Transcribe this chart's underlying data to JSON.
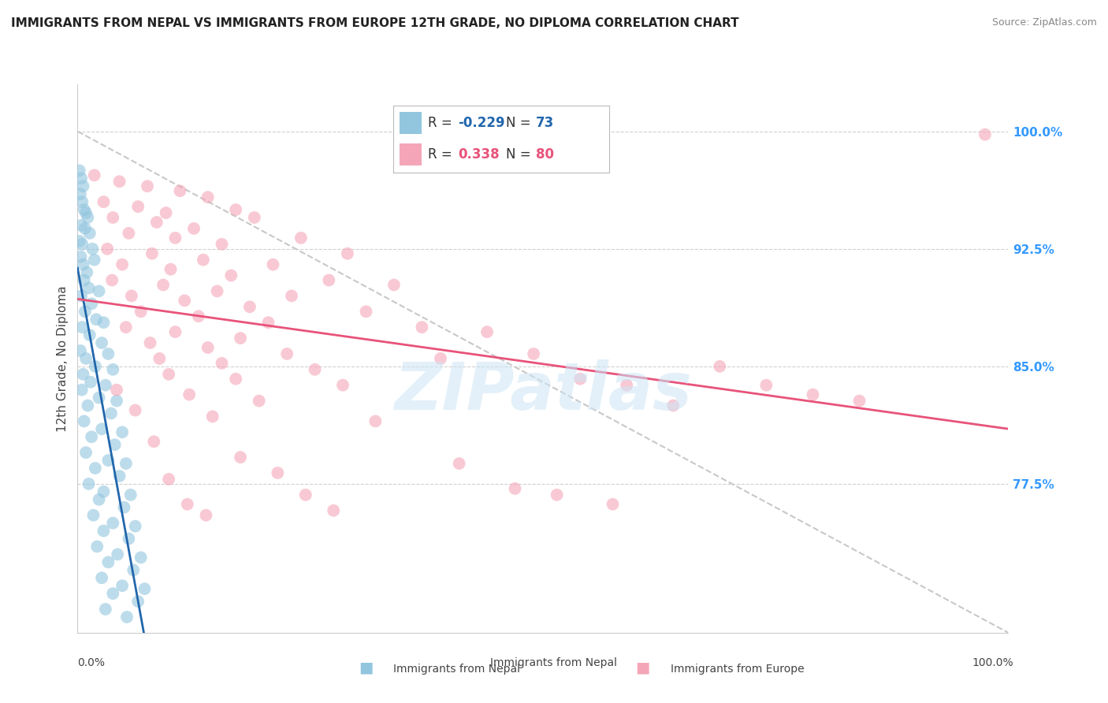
{
  "title": "IMMIGRANTS FROM NEPAL VS IMMIGRANTS FROM EUROPE 12TH GRADE, NO DIPLOMA CORRELATION CHART",
  "source": "Source: ZipAtlas.com",
  "ylabel": "12th Grade, No Diploma",
  "right_yticks": [
    77.5,
    85.0,
    92.5,
    100.0
  ],
  "legend_blue_r": "-0.229",
  "legend_blue_n": "73",
  "legend_pink_r": "0.338",
  "legend_pink_n": "80",
  "blue_color": "#92c5de",
  "pink_color": "#f4a6b8",
  "blue_line_color": "#2166ac",
  "pink_line_color": "#e8537a",
  "xlim": [
    0,
    100
  ],
  "ylim": [
    68,
    103
  ],
  "blue_scatter": [
    [
      0.2,
      97.5
    ],
    [
      0.4,
      97.0
    ],
    [
      0.6,
      96.5
    ],
    [
      0.3,
      96.0
    ],
    [
      0.5,
      95.5
    ],
    [
      0.7,
      95.0
    ],
    [
      0.9,
      94.8
    ],
    [
      1.1,
      94.5
    ],
    [
      0.4,
      94.0
    ],
    [
      0.8,
      93.8
    ],
    [
      1.3,
      93.5
    ],
    [
      0.2,
      93.0
    ],
    [
      0.5,
      92.8
    ],
    [
      1.6,
      92.5
    ],
    [
      0.35,
      92.0
    ],
    [
      1.8,
      91.8
    ],
    [
      0.6,
      91.5
    ],
    [
      1.0,
      91.0
    ],
    [
      0.7,
      90.5
    ],
    [
      1.2,
      90.0
    ],
    [
      2.3,
      89.8
    ],
    [
      0.4,
      89.5
    ],
    [
      1.5,
      89.0
    ],
    [
      0.8,
      88.5
    ],
    [
      2.0,
      88.0
    ],
    [
      2.8,
      87.8
    ],
    [
      0.5,
      87.5
    ],
    [
      1.3,
      87.0
    ],
    [
      2.6,
      86.5
    ],
    [
      0.3,
      86.0
    ],
    [
      3.3,
      85.8
    ],
    [
      0.9,
      85.5
    ],
    [
      1.9,
      85.0
    ],
    [
      3.8,
      84.8
    ],
    [
      0.6,
      84.5
    ],
    [
      1.4,
      84.0
    ],
    [
      3.0,
      83.8
    ],
    [
      0.45,
      83.5
    ],
    [
      2.3,
      83.0
    ],
    [
      4.2,
      82.8
    ],
    [
      1.1,
      82.5
    ],
    [
      3.6,
      82.0
    ],
    [
      0.7,
      81.5
    ],
    [
      2.6,
      81.0
    ],
    [
      4.8,
      80.8
    ],
    [
      1.5,
      80.5
    ],
    [
      4.0,
      80.0
    ],
    [
      0.9,
      79.5
    ],
    [
      3.3,
      79.0
    ],
    [
      5.2,
      78.8
    ],
    [
      1.9,
      78.5
    ],
    [
      4.5,
      78.0
    ],
    [
      1.2,
      77.5
    ],
    [
      2.8,
      77.0
    ],
    [
      5.7,
      76.8
    ],
    [
      2.3,
      76.5
    ],
    [
      5.0,
      76.0
    ],
    [
      1.7,
      75.5
    ],
    [
      3.8,
      75.0
    ],
    [
      6.2,
      74.8
    ],
    [
      2.8,
      74.5
    ],
    [
      5.5,
      74.0
    ],
    [
      2.1,
      73.5
    ],
    [
      4.3,
      73.0
    ],
    [
      6.8,
      72.8
    ],
    [
      3.3,
      72.5
    ],
    [
      6.0,
      72.0
    ],
    [
      2.6,
      71.5
    ],
    [
      4.8,
      71.0
    ],
    [
      7.2,
      70.8
    ],
    [
      3.8,
      70.5
    ],
    [
      6.5,
      70.0
    ],
    [
      3.0,
      69.5
    ],
    [
      5.3,
      69.0
    ]
  ],
  "pink_scatter": [
    [
      1.8,
      97.2
    ],
    [
      4.5,
      96.8
    ],
    [
      7.5,
      96.5
    ],
    [
      11.0,
      96.2
    ],
    [
      14.0,
      95.8
    ],
    [
      2.8,
      95.5
    ],
    [
      6.5,
      95.2
    ],
    [
      9.5,
      94.8
    ],
    [
      17.0,
      95.0
    ],
    [
      3.8,
      94.5
    ],
    [
      8.5,
      94.2
    ],
    [
      12.5,
      93.8
    ],
    [
      19.0,
      94.5
    ],
    [
      5.5,
      93.5
    ],
    [
      10.5,
      93.2
    ],
    [
      15.5,
      92.8
    ],
    [
      24.0,
      93.2
    ],
    [
      3.2,
      92.5
    ],
    [
      8.0,
      92.2
    ],
    [
      13.5,
      91.8
    ],
    [
      21.0,
      91.5
    ],
    [
      29.0,
      92.2
    ],
    [
      4.8,
      91.5
    ],
    [
      10.0,
      91.2
    ],
    [
      16.5,
      90.8
    ],
    [
      27.0,
      90.5
    ],
    [
      3.7,
      90.5
    ],
    [
      9.2,
      90.2
    ],
    [
      15.0,
      89.8
    ],
    [
      23.0,
      89.5
    ],
    [
      34.0,
      90.2
    ],
    [
      5.8,
      89.5
    ],
    [
      11.5,
      89.2
    ],
    [
      18.5,
      88.8
    ],
    [
      31.0,
      88.5
    ],
    [
      6.8,
      88.5
    ],
    [
      13.0,
      88.2
    ],
    [
      20.5,
      87.8
    ],
    [
      37.0,
      87.5
    ],
    [
      5.2,
      87.5
    ],
    [
      10.5,
      87.2
    ],
    [
      17.5,
      86.8
    ],
    [
      44.0,
      87.2
    ],
    [
      7.8,
      86.5
    ],
    [
      14.0,
      86.2
    ],
    [
      22.5,
      85.8
    ],
    [
      39.0,
      85.5
    ],
    [
      8.8,
      85.5
    ],
    [
      15.5,
      85.2
    ],
    [
      25.5,
      84.8
    ],
    [
      49.0,
      85.8
    ],
    [
      9.8,
      84.5
    ],
    [
      17.0,
      84.2
    ],
    [
      28.5,
      83.8
    ],
    [
      54.0,
      84.2
    ],
    [
      4.2,
      83.5
    ],
    [
      12.0,
      83.2
    ],
    [
      19.5,
      82.8
    ],
    [
      59.0,
      83.8
    ],
    [
      6.2,
      82.2
    ],
    [
      14.5,
      81.8
    ],
    [
      32.0,
      81.5
    ],
    [
      64.0,
      82.5
    ],
    [
      8.2,
      80.2
    ],
    [
      17.5,
      79.2
    ],
    [
      41.0,
      78.8
    ],
    [
      69.0,
      85.0
    ],
    [
      9.8,
      77.8
    ],
    [
      21.5,
      78.2
    ],
    [
      47.0,
      77.2
    ],
    [
      74.0,
      83.8
    ],
    [
      11.8,
      76.2
    ],
    [
      24.5,
      76.8
    ],
    [
      51.5,
      76.8
    ],
    [
      79.0,
      83.2
    ],
    [
      13.8,
      75.5
    ],
    [
      27.5,
      75.8
    ],
    [
      57.5,
      76.2
    ],
    [
      84.0,
      82.8
    ],
    [
      97.5,
      99.8
    ]
  ],
  "watermark_text": "ZIPatlas",
  "figsize": [
    14.06,
    8.92
  ],
  "dpi": 100
}
